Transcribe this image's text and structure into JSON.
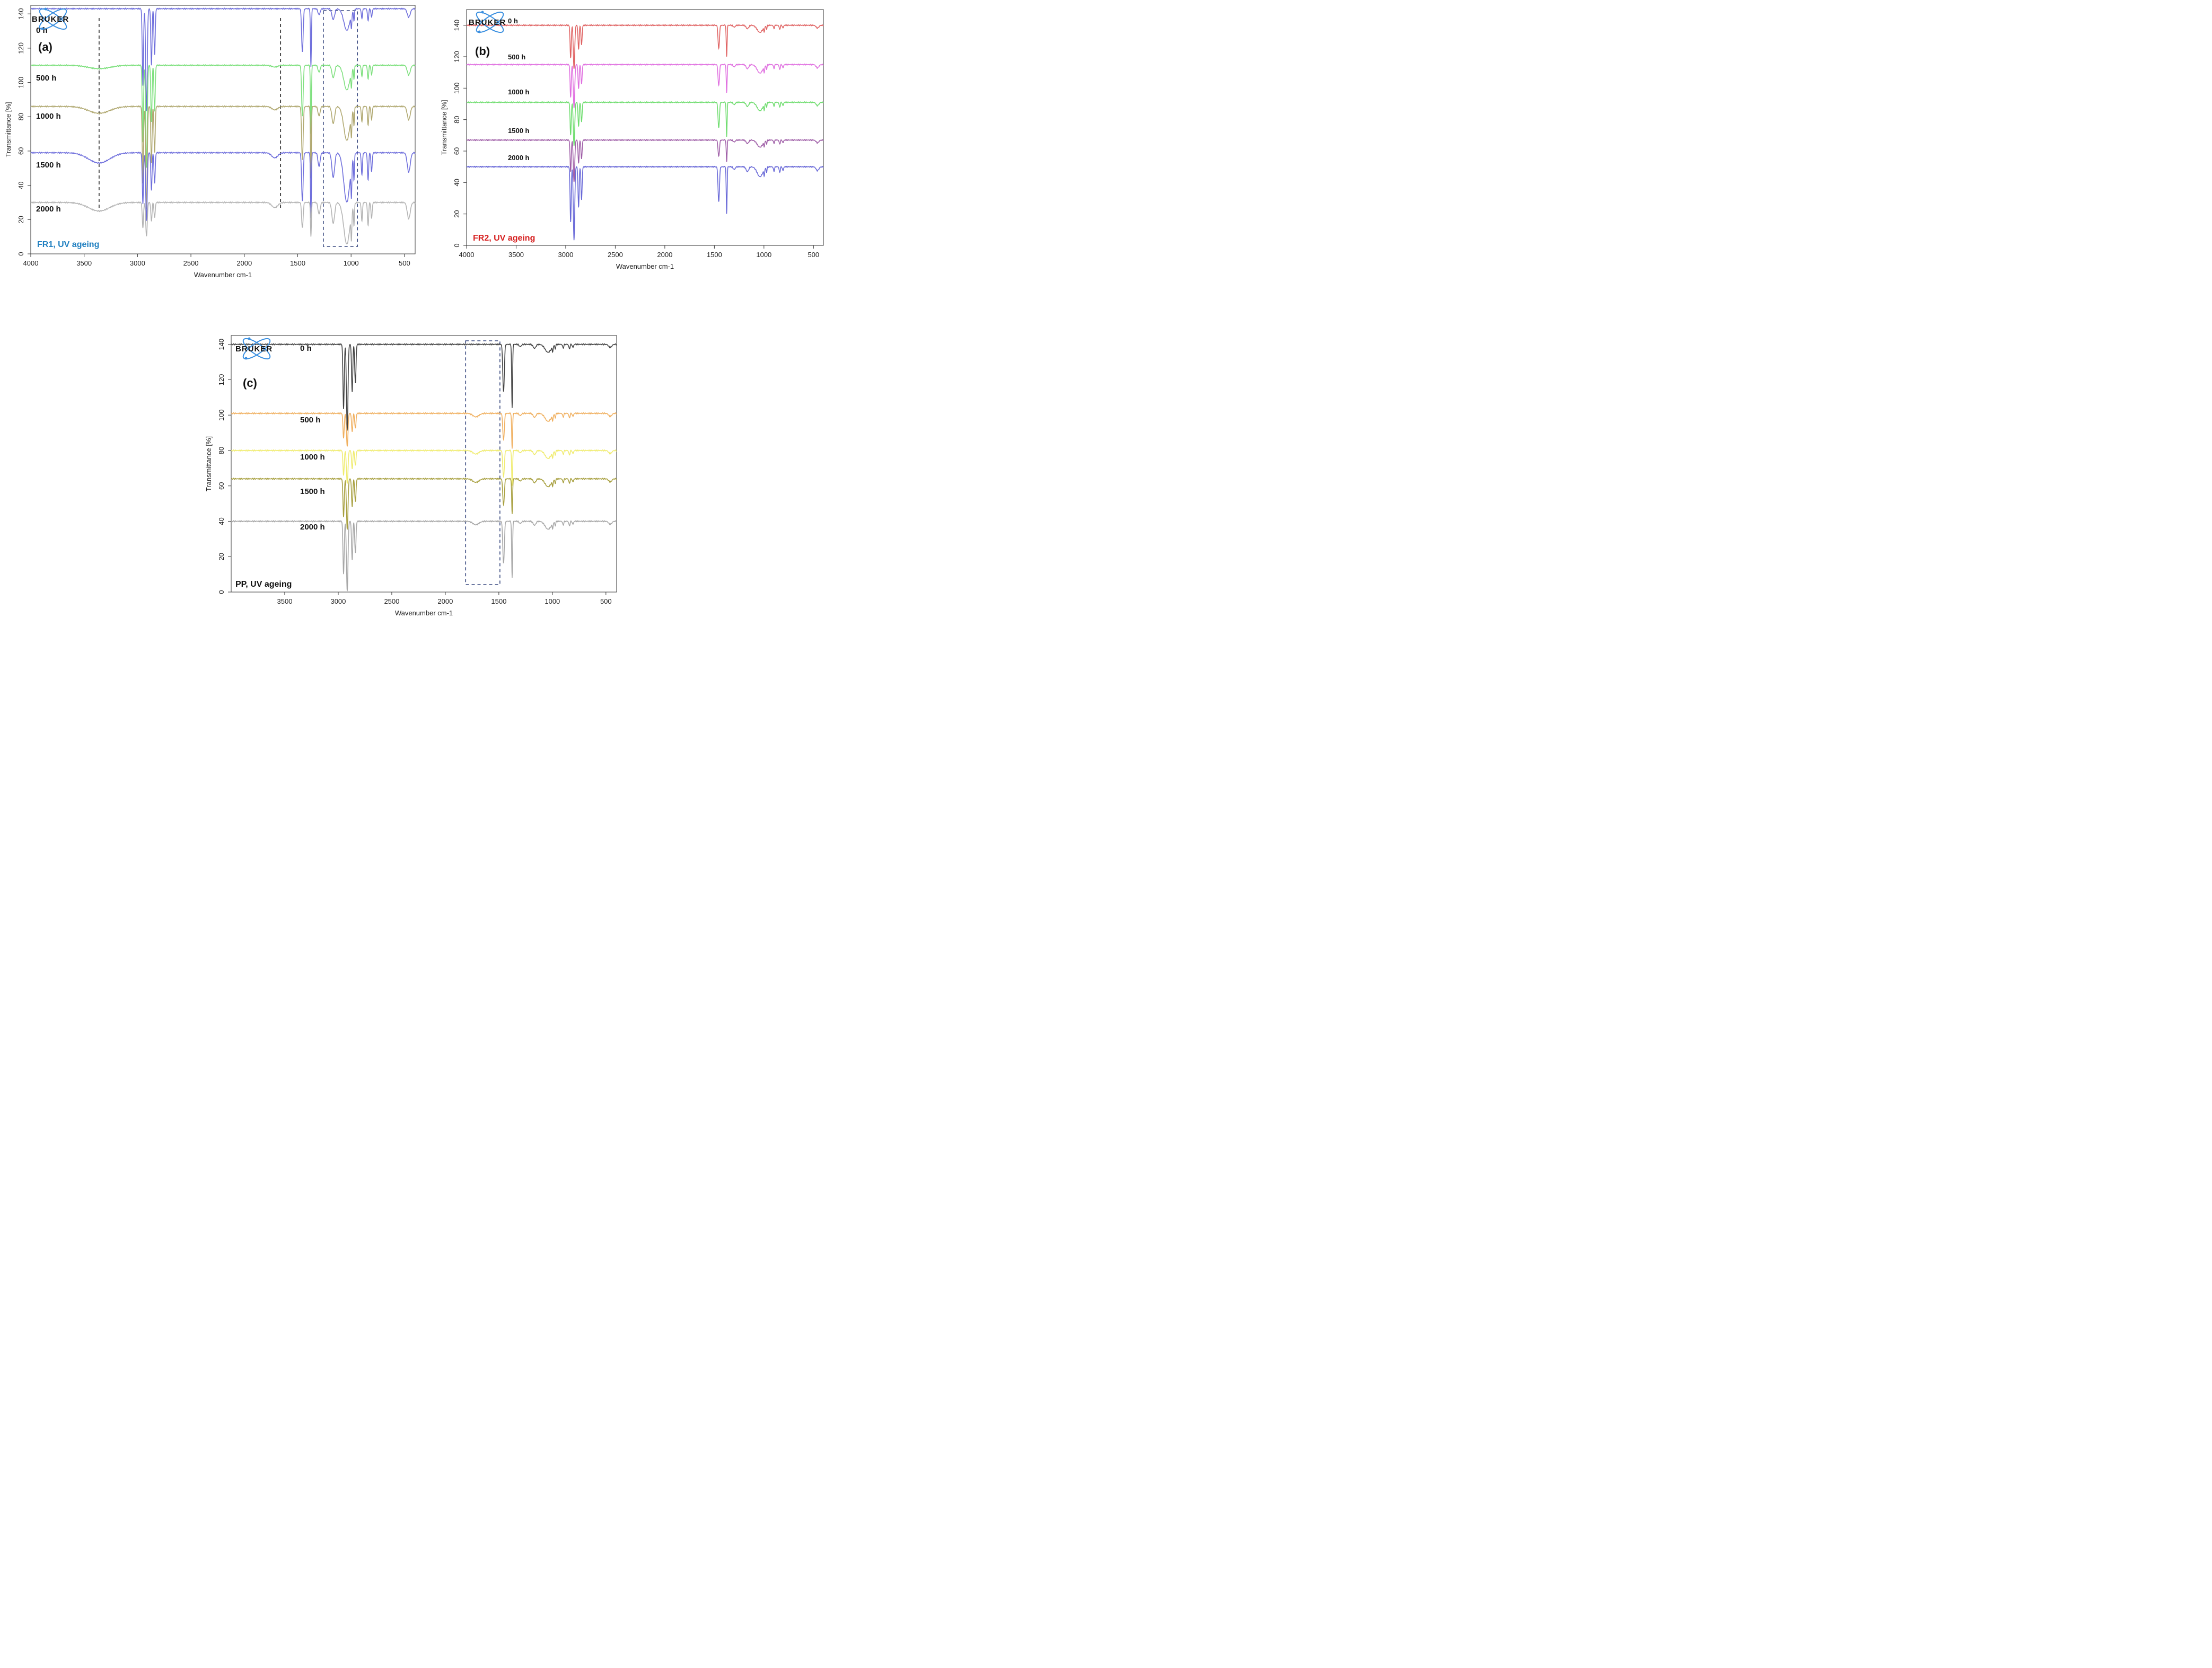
{
  "logo_text": "BRUKER",
  "chart_data": [
    {
      "id": "a",
      "type": "line",
      "panel_label": "(a)",
      "caption": "FR1, UV ageing",
      "caption_color": "#1f7fc0",
      "xlabel": "Wavenumber cm-1",
      "ylabel": "Transmittance [%]",
      "xlim": [
        4000,
        400
      ],
      "ylim": [
        0,
        145
      ],
      "xticks": [
        4000,
        3500,
        3000,
        2500,
        2000,
        1500,
        1000,
        500
      ],
      "yticks": [
        0,
        20,
        40,
        60,
        80,
        100,
        120,
        140
      ],
      "dashed_lines_x": [
        3360,
        1660
      ],
      "highlight_box_x": [
        1260,
        940
      ],
      "series": [
        {
          "name": "0 h",
          "baseline": 143,
          "color": "#6f6fdc",
          "oh_dip": 0,
          "co_dip": 0,
          "cf_dip": 14,
          "main_dip": 60,
          "ch_dip": 34
        },
        {
          "name": "500 h",
          "baseline": 110,
          "color": "#7ee07e",
          "oh_dip": 2,
          "co_dip": 1,
          "cf_dip": 16,
          "main_dip": 60,
          "ch_dip": 40
        },
        {
          "name": "1000 h",
          "baseline": 86,
          "color": "#b0a870",
          "oh_dip": 4,
          "co_dip": 2,
          "cf_dip": 22,
          "main_dip": 60,
          "ch_dip": 42
        },
        {
          "name": "1500 h",
          "baseline": 59,
          "color": "#6f6fdc",
          "oh_dip": 6,
          "co_dip": 3,
          "cf_dip": 32,
          "main_dip": 40,
          "ch_dip": 38
        },
        {
          "name": "2000 h",
          "baseline": 30,
          "color": "#b4b4b4",
          "oh_dip": 5,
          "co_dip": 3,
          "cf_dip": 27,
          "main_dip": 20,
          "ch_dip": 20
        }
      ]
    },
    {
      "id": "b",
      "type": "line",
      "panel_label": "(b)",
      "caption": "FR2, UV ageing",
      "caption_color": "#d62020",
      "xlabel": "Wavenumber cm-1",
      "ylabel": "Transmittance [%]",
      "xlim": [
        4000,
        400
      ],
      "ylim": [
        0,
        150
      ],
      "xticks": [
        4000,
        3500,
        3000,
        2500,
        2000,
        1500,
        1000,
        500
      ],
      "yticks": [
        0,
        20,
        40,
        60,
        80,
        100,
        120,
        140
      ],
      "dashed_lines_x": [],
      "highlight_box_x": [],
      "series": [
        {
          "name": "0 h",
          "baseline": 140,
          "color": "#e06464",
          "oh_dip": 0,
          "co_dip": 0,
          "cf_dip": 5,
          "main_dip": 28,
          "ch_dip": 20
        },
        {
          "name": "500 h",
          "baseline": 115,
          "color": "#e070e0",
          "oh_dip": 0,
          "co_dip": 0,
          "cf_dip": 6,
          "main_dip": 28,
          "ch_dip": 18
        },
        {
          "name": "1000 h",
          "baseline": 91,
          "color": "#70dd70",
          "oh_dip": 0,
          "co_dip": 0,
          "cf_dip": 6,
          "main_dip": 28,
          "ch_dip": 22
        },
        {
          "name": "1500 h",
          "baseline": 67,
          "color": "#a060a8",
          "oh_dip": 0,
          "co_dip": 0,
          "cf_dip": 5,
          "main_dip": 27,
          "ch_dip": 14
        },
        {
          "name": "2000 h",
          "baseline": 50,
          "color": "#6a6ad8",
          "oh_dip": 0,
          "co_dip": 0,
          "cf_dip": 7,
          "main_dip": 47,
          "ch_dip": 30
        }
      ]
    },
    {
      "id": "c",
      "type": "line",
      "panel_label": "(c)",
      "caption": "PP, UV ageing",
      "caption_color": "#111111",
      "xlabel": "Wavenumber cm-1",
      "ylabel": "Transmittance [%]",
      "xlim": [
        4000,
        400
      ],
      "ylim": [
        0,
        145
      ],
      "xticks": [
        3500,
        3000,
        2500,
        2000,
        1500,
        1000,
        500
      ],
      "yticks": [
        0,
        20,
        40,
        60,
        80,
        100,
        120,
        140
      ],
      "dashed_lines_x": [],
      "highlight_box_x": [
        1810,
        1490
      ],
      "series": [
        {
          "name": "0 h",
          "baseline": 140,
          "color": "#444444",
          "oh_dip": 0,
          "co_dip": 0,
          "cf_dip": 5,
          "main_dip": 49,
          "ch_dip": 36
        },
        {
          "name": "500 h",
          "baseline": 101,
          "color": "#f0b060",
          "oh_dip": 0,
          "co_dip": 2,
          "cf_dip": 5,
          "main_dip": 19,
          "ch_dip": 20
        },
        {
          "name": "1000 h",
          "baseline": 80,
          "color": "#f0ec70",
          "oh_dip": 0,
          "co_dip": 2,
          "cf_dip": 5,
          "main_dip": 19,
          "ch_dip": 20
        },
        {
          "name": "1500 h",
          "baseline": 64,
          "color": "#a8a040",
          "oh_dip": 0,
          "co_dip": 2,
          "cf_dip": 5,
          "main_dip": 29,
          "ch_dip": 20
        },
        {
          "name": "2000 h",
          "baseline": 40,
          "color": "#a8a8a8",
          "oh_dip": 0,
          "co_dip": 2,
          "cf_dip": 5,
          "main_dip": 40,
          "ch_dip": 32
        }
      ]
    }
  ]
}
